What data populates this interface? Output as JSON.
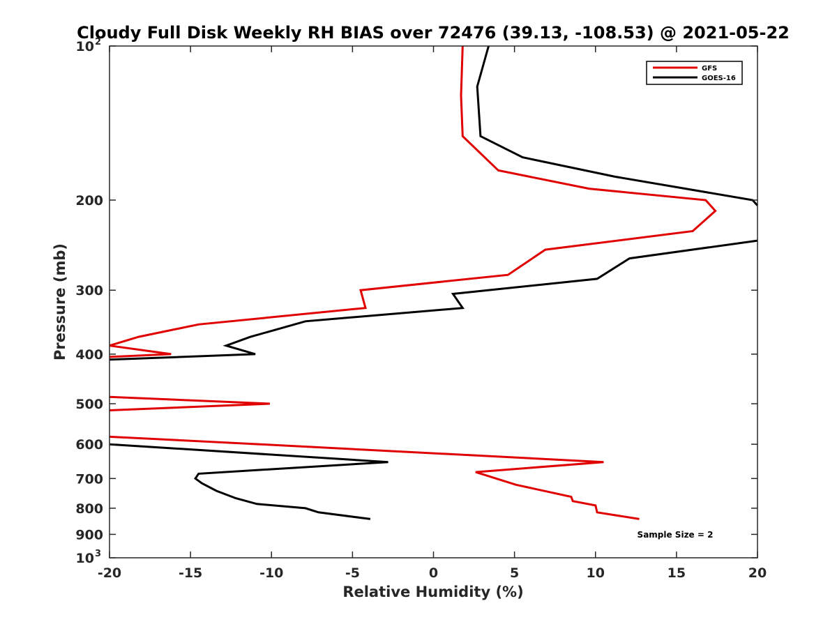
{
  "chart_data": {
    "type": "line",
    "title": "Cloudy Full Disk Weekly RH BIAS over 72476 (39.13, -108.53) @ 2021-05-22",
    "xlabel": "Relative Humidity (%)",
    "ylabel": "Pressure (mb)",
    "xlim": [
      -20,
      20
    ],
    "ylim": [
      100,
      1000
    ],
    "y_scale": "log",
    "y_reversed": true,
    "grid": false,
    "legend_position": "top-right",
    "annotation": "Sample Size = 2",
    "x_ticks": [
      {
        "value": -20,
        "label": "-20"
      },
      {
        "value": -15,
        "label": "-15"
      },
      {
        "value": -10,
        "label": "-10"
      },
      {
        "value": -5,
        "label": "-5"
      },
      {
        "value": 0,
        "label": "0"
      },
      {
        "value": 5,
        "label": "5"
      },
      {
        "value": 10,
        "label": "10"
      },
      {
        "value": 15,
        "label": "15"
      },
      {
        "value": 20,
        "label": "20"
      }
    ],
    "y_ticks": [
      {
        "value": 100,
        "label": "10",
        "sup": "2"
      },
      {
        "value": 200,
        "label": "200",
        "sup": ""
      },
      {
        "value": 300,
        "label": "300",
        "sup": ""
      },
      {
        "value": 400,
        "label": "400",
        "sup": ""
      },
      {
        "value": 500,
        "label": "500",
        "sup": ""
      },
      {
        "value": 600,
        "label": "600",
        "sup": ""
      },
      {
        "value": 700,
        "label": "700",
        "sup": ""
      },
      {
        "value": 800,
        "label": "800",
        "sup": ""
      },
      {
        "value": 900,
        "label": "900",
        "sup": ""
      },
      {
        "value": 1000,
        "label": "10",
        "sup": "3"
      }
    ],
    "series": [
      {
        "name": "GFS",
        "color": "#e00000",
        "segments": [
          [
            [
              1.8,
              100
            ],
            [
              1.7,
              125
            ],
            [
              1.8,
              150
            ],
            [
              4.0,
              175
            ],
            [
              9.6,
              190
            ],
            [
              16.8,
              200
            ],
            [
              17.4,
              210
            ],
            [
              16.0,
              230
            ],
            [
              6.9,
              250
            ],
            [
              4.6,
              280
            ],
            [
              -4.5,
              300
            ],
            [
              -4.2,
              325
            ],
            [
              -14.5,
              350
            ],
            [
              -18.2,
              370
            ],
            [
              -20,
              385
            ],
            [
              -16.2,
              400
            ],
            [
              -20,
              405
            ]
          ],
          [
            [
              -20,
              485
            ],
            [
              -10.1,
              500
            ],
            [
              -20,
              515
            ]
          ],
          [
            [
              -20,
              580
            ],
            [
              -10.7,
              600
            ],
            [
              10.5,
              650
            ],
            [
              2.6,
              680
            ],
            [
              5.1,
              720
            ],
            [
              8.5,
              760
            ],
            [
              8.6,
              775
            ],
            [
              10.0,
              790
            ],
            [
              10.1,
              815
            ],
            [
              12.7,
              840
            ]
          ]
        ]
      },
      {
        "name": "GOES-16",
        "color": "#000000",
        "segments": [
          [
            [
              3.4,
              100
            ],
            [
              2.7,
              120
            ],
            [
              2.9,
              150
            ],
            [
              5.5,
              165
            ],
            [
              11.2,
              180
            ],
            [
              19.7,
              200
            ],
            [
              20,
              205
            ]
          ],
          [
            [
              20,
              240
            ],
            [
              12.1,
              260
            ],
            [
              10.1,
              285
            ],
            [
              1.2,
              305
            ],
            [
              1.8,
              325
            ],
            [
              -7.9,
              345
            ],
            [
              -11.3,
              370
            ],
            [
              -12.8,
              385
            ],
            [
              -11.0,
              400
            ],
            [
              -20,
              410
            ]
          ],
          [
            [
              -20,
              600
            ],
            [
              -2.8,
              650
            ],
            [
              -14.5,
              685
            ],
            [
              -14.7,
              700
            ],
            [
              -14.3,
              715
            ],
            [
              -13.4,
              740
            ],
            [
              -12.2,
              765
            ],
            [
              -10.9,
              785
            ],
            [
              -7.9,
              800
            ],
            [
              -7.1,
              815
            ],
            [
              -3.9,
              840
            ]
          ]
        ]
      }
    ]
  }
}
